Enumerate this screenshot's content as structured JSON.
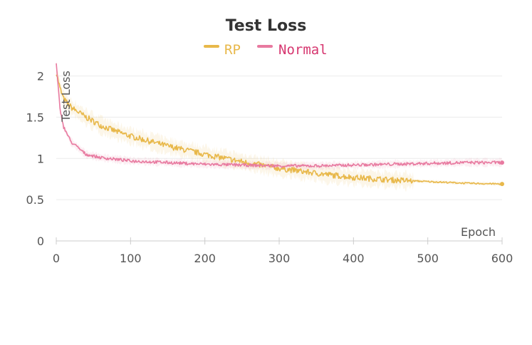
{
  "chart_data": {
    "type": "line",
    "title": "Test Loss",
    "xlabel": "Epoch",
    "ylabel": "Test Loss",
    "xlim": [
      0,
      600
    ],
    "ylim": [
      0,
      2.1
    ],
    "x_ticks": [
      0,
      100,
      200,
      300,
      400,
      500,
      600
    ],
    "y_ticks": [
      0,
      0.5,
      1,
      1.5,
      2
    ],
    "x_tick_labels": [
      "0",
      "100",
      "200",
      "300",
      "400",
      "500",
      "600"
    ],
    "y_tick_labels": [
      "0",
      "0.5",
      "1",
      "1.5",
      "2"
    ],
    "grid": true,
    "legend_position": "top-center",
    "series": [
      {
        "name": "RP",
        "color": "#e8b84a",
        "x": [
          0,
          5,
          10,
          20,
          40,
          60,
          80,
          100,
          150,
          200,
          250,
          300,
          350,
          400,
          450,
          500,
          550,
          600
        ],
        "y": [
          2.05,
          1.85,
          1.72,
          1.62,
          1.5,
          1.4,
          1.33,
          1.27,
          1.15,
          1.05,
          0.96,
          0.88,
          0.82,
          0.77,
          0.74,
          0.72,
          0.7,
          0.69
        ]
      },
      {
        "name": "Normal",
        "color": "#e87aa0",
        "x": [
          0,
          5,
          10,
          20,
          40,
          60,
          80,
          100,
          150,
          200,
          250,
          300,
          350,
          400,
          450,
          500,
          550,
          600
        ],
        "y": [
          2.15,
          1.6,
          1.38,
          1.2,
          1.05,
          1.01,
          0.99,
          0.97,
          0.95,
          0.93,
          0.92,
          0.91,
          0.91,
          0.92,
          0.93,
          0.94,
          0.95,
          0.95
        ]
      }
    ]
  }
}
